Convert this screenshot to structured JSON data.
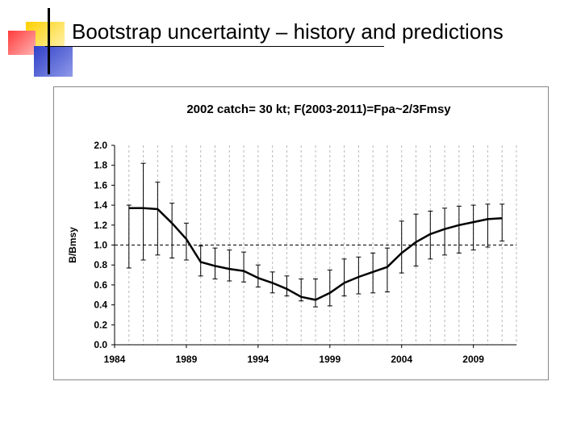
{
  "slide": {
    "title": "Bootstrap uncertainty – history and predictions"
  },
  "chart_data": {
    "type": "line",
    "title": "2002 catch= 30 kt; F(2003-2011)=Fpa~2/3Fmsy",
    "xlabel": "",
    "ylabel": "B/Bmsy",
    "xlim": [
      1984,
      2012
    ],
    "ylim": [
      0,
      2.0
    ],
    "xticks": [
      1984,
      1989,
      1994,
      1999,
      2004,
      2009
    ],
    "xtick_labels": [
      "1984",
      "1989",
      "1994",
      "1999",
      "2004",
      "2009"
    ],
    "yticks": [
      0,
      0.2,
      0.4,
      0.6,
      0.8,
      1.0,
      1.2,
      1.4,
      1.6,
      1.8,
      2.0
    ],
    "ytick_labels": [
      "0.0",
      "0.2",
      "0.4",
      "0.6",
      "0.8",
      "1.0",
      "1.2",
      "1.4",
      "1.6",
      "1.8",
      "2.0"
    ],
    "reference_line": {
      "y": 1.0,
      "style": "dashed"
    },
    "grid": "vertical dashed",
    "series": [
      {
        "name": "B/Bmsy",
        "x": [
          1985,
          1986,
          1987,
          1988,
          1989,
          1990,
          1991,
          1992,
          1993,
          1994,
          1995,
          1996,
          1997,
          1998,
          1999,
          2000,
          2001,
          2002,
          2003,
          2004,
          2005,
          2006,
          2007,
          2008,
          2009,
          2010,
          2011
        ],
        "values": [
          1.37,
          1.37,
          1.36,
          1.22,
          1.06,
          0.83,
          0.79,
          0.76,
          0.74,
          0.67,
          0.62,
          0.56,
          0.48,
          0.45,
          0.52,
          0.62,
          0.68,
          0.73,
          0.78,
          0.92,
          1.03,
          1.11,
          1.16,
          1.2,
          1.23,
          1.26,
          1.27
        ],
        "upper": [
          1.4,
          1.82,
          1.63,
          1.42,
          1.22,
          0.99,
          0.97,
          0.95,
          0.93,
          0.8,
          0.73,
          0.69,
          0.66,
          0.66,
          0.75,
          0.86,
          0.88,
          0.92,
          0.97,
          1.24,
          1.31,
          1.34,
          1.37,
          1.39,
          1.4,
          1.41,
          1.41
        ],
        "lower": [
          0.77,
          0.85,
          0.9,
          0.87,
          0.85,
          0.69,
          0.66,
          0.64,
          0.63,
          0.58,
          0.52,
          0.49,
          0.44,
          0.38,
          0.39,
          0.49,
          0.51,
          0.52,
          0.53,
          0.72,
          0.79,
          0.86,
          0.9,
          0.92,
          0.95,
          0.98,
          1.04
        ]
      }
    ]
  }
}
